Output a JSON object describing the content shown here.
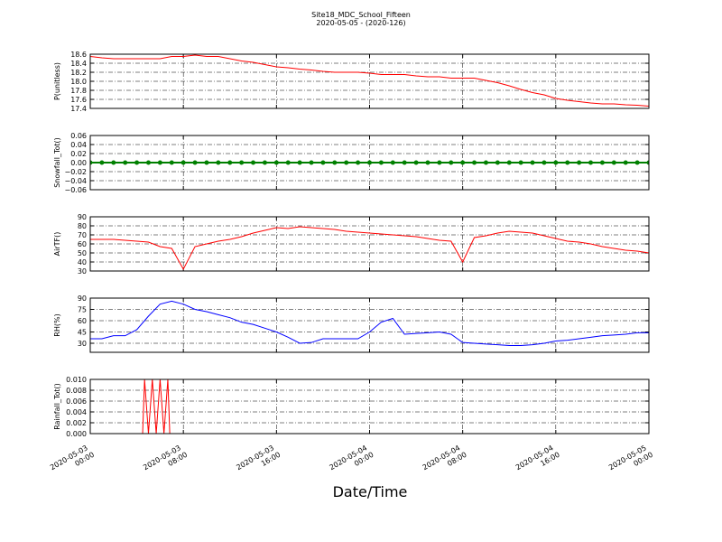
{
  "chart_data": {
    "title": "Site18_MDC_School_Fifteen",
    "subtitle": "2020-05-05 - (2020-126)",
    "xlabel": "Date/Time",
    "xlim": [
      "2020-05-03 00:00",
      "2020-05-05 00:00"
    ],
    "xticks": [
      "2020-05-03 00:00",
      "2020-05-03 08:00",
      "2020-05-03 16:00",
      "2020-05-04 00:00",
      "2020-05-04 08:00",
      "2020-05-04 16:00",
      "2020-05-05 00:00"
    ],
    "x": [
      "2020-05-03 00:00",
      "2020-05-03 01:00",
      "2020-05-03 02:00",
      "2020-05-03 03:00",
      "2020-05-03 04:00",
      "2020-05-03 05:00",
      "2020-05-03 06:00",
      "2020-05-03 07:00",
      "2020-05-03 08:00",
      "2020-05-03 09:00",
      "2020-05-03 10:00",
      "2020-05-03 11:00",
      "2020-05-03 12:00",
      "2020-05-03 13:00",
      "2020-05-03 14:00",
      "2020-05-03 15:00",
      "2020-05-03 16:00",
      "2020-05-03 17:00",
      "2020-05-03 18:00",
      "2020-05-03 19:00",
      "2020-05-03 20:00",
      "2020-05-03 21:00",
      "2020-05-03 22:00",
      "2020-05-03 23:00",
      "2020-05-04 00:00",
      "2020-05-04 01:00",
      "2020-05-04 02:00",
      "2020-05-04 03:00",
      "2020-05-04 04:00",
      "2020-05-04 05:00",
      "2020-05-04 06:00",
      "2020-05-04 07:00",
      "2020-05-04 08:00",
      "2020-05-04 09:00",
      "2020-05-04 10:00",
      "2020-05-04 11:00",
      "2020-05-04 12:00",
      "2020-05-04 13:00",
      "2020-05-04 14:00",
      "2020-05-04 15:00",
      "2020-05-04 16:00",
      "2020-05-04 17:00",
      "2020-05-04 18:00",
      "2020-05-04 19:00",
      "2020-05-04 20:00",
      "2020-05-04 21:00",
      "2020-05-04 22:00",
      "2020-05-04 23:00",
      "2020-05-05 00:00"
    ],
    "panels": [
      {
        "type": "line",
        "ylabel": "P(unitless)",
        "ylim": [
          17.4,
          18.6
        ],
        "grid": true,
        "yticks": [
          17.4,
          17.6,
          17.8,
          {
            "value": 18.0,
            "label": "18.0"
          },
          18.2,
          18.4,
          18.6
        ],
        "series": [
          {
            "color": "#ff0000",
            "values": [
              18.55,
              18.52,
              18.5,
              18.5,
              18.5,
              18.5,
              18.5,
              18.55,
              18.55,
              18.58,
              18.55,
              18.55,
              18.5,
              18.45,
              18.42,
              18.37,
              18.32,
              18.3,
              18.27,
              18.25,
              18.22,
              18.2,
              18.2,
              18.2,
              18.18,
              18.15,
              18.15,
              18.15,
              18.12,
              18.1,
              18.1,
              18.07,
              18.07,
              18.07,
              18.02,
              17.97,
              17.9,
              17.82,
              17.75,
              17.7,
              17.62,
              17.58,
              17.55,
              17.52,
              17.5,
              17.5,
              17.48,
              17.47,
              17.45
            ]
          }
        ]
      },
      {
        "type": "line",
        "marker": true,
        "ylabel": "Snowfall_Tot()",
        "ylim": [
          -0.06,
          0.06
        ],
        "grid": true,
        "yticks": [
          {
            "value": -0.06,
            "label": "−0.06"
          },
          {
            "value": -0.04,
            "label": "−0.04"
          },
          {
            "value": -0.02,
            "label": "−0.02"
          },
          {
            "value": 0,
            "label": "0.00"
          },
          0.02,
          0.04,
          0.06
        ],
        "series": [
          {
            "color": "#008000",
            "values": [
              0,
              0,
              0,
              0,
              0,
              0,
              0,
              0,
              0,
              0,
              0,
              0,
              0,
              0,
              0,
              0,
              0,
              0,
              0,
              0,
              0,
              0,
              0,
              0,
              0,
              0,
              0,
              0,
              0,
              0,
              0,
              0,
              0,
              0,
              0,
              0,
              0,
              0,
              0,
              0,
              0,
              0,
              0,
              0,
              0,
              0,
              0,
              0,
              0
            ]
          }
        ]
      },
      {
        "type": "line",
        "ylabel": "AirTF()",
        "ylim": [
          30,
          90
        ],
        "grid": true,
        "yticks": [
          30,
          40,
          50,
          60,
          70,
          80,
          90
        ],
        "series": [
          {
            "color": "#ff0000",
            "values": [
              65,
              65,
              65,
              64,
              63,
              62,
              57,
              55,
              32,
              57,
              60,
              63,
              65,
              68,
              72,
              75,
              78,
              77,
              79,
              78,
              77,
              76,
              74,
              73,
              72,
              71,
              70,
              69,
              68,
              66,
              64,
              63,
              40,
              67,
              69,
              72,
              74,
              73,
              72,
              69,
              66,
              63,
              62,
              60,
              57,
              55,
              53,
              52,
              50
            ]
          }
        ]
      },
      {
        "type": "line",
        "ylabel": "RH(%)",
        "ylim": [
          18,
          90
        ],
        "grid": true,
        "yticks": [
          30,
          45,
          60,
          75,
          90
        ],
        "series": [
          {
            "color": "#0000ff",
            "values": [
              36,
              36,
              40,
              40,
              48,
              66,
              82,
              86,
              82,
              75,
              72,
              68,
              64,
              58,
              55,
              50,
              45,
              38,
              30,
              31,
              36,
              36,
              36,
              36,
              45,
              58,
              63,
              42,
              43,
              44,
              45,
              42,
              31,
              30,
              29,
              28,
              27,
              27,
              28,
              30,
              33,
              34,
              36,
              38,
              40,
              41,
              42,
              44,
              44
            ]
          }
        ]
      },
      {
        "type": "line",
        "ylabel": "Rainfall_Tot()",
        "ylim": [
          0,
          0.01
        ],
        "grid": true,
        "showx": true,
        "yticks": [
          {
            "value": 0,
            "label": "0.000"
          },
          0.002,
          0.004,
          0.006,
          0.008,
          {
            "value": 0.01,
            "label": "0.010"
          }
        ],
        "x": [
          "2020-05-03 00:00",
          "2020-05-03 04:30",
          "2020-05-03 04:40",
          "2020-05-03 05:00",
          "2020-05-03 05:20",
          "2020-05-03 05:40",
          "2020-05-03 06:00",
          "2020-05-03 06:20",
          "2020-05-03 06:40",
          "2020-05-03 06:50",
          "2020-05-05 00:00"
        ],
        "series": [
          {
            "color": "#ff0000",
            "values": [
              0,
              0,
              0.01,
              0,
              0.01,
              0,
              0.01,
              0,
              0.01,
              0,
              0
            ]
          }
        ]
      }
    ]
  }
}
